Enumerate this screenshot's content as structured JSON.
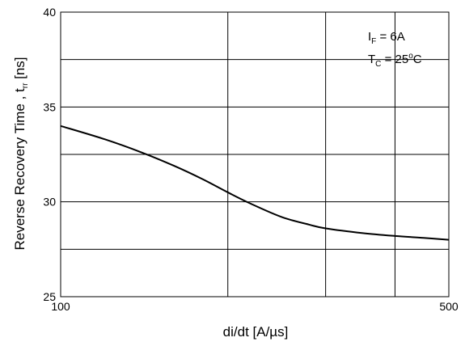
{
  "chart_data": {
    "type": "line",
    "xscale": "log",
    "xlabel": {
      "main": "di/dt [A/",
      "unit": "µs",
      "close": "]"
    },
    "ylabel": {
      "main": "Reverse Recovery Time , t",
      "sub": "rr",
      "unit": " [ns]"
    },
    "xlim": [
      100,
      500
    ],
    "ylim": [
      25,
      40
    ],
    "x_tick_labels": [
      "100",
      "500"
    ],
    "y_tick_labels": [
      "25",
      "30",
      "35",
      "40"
    ],
    "x_gridlines": [
      200,
      300,
      400
    ],
    "y_gridlines": [
      27.5,
      30,
      32.5,
      35,
      37.5
    ],
    "grid": true,
    "annotations": [
      {
        "main": "I",
        "sub": "F",
        "rest": " = 6A"
      },
      {
        "main": "T",
        "sub": "C",
        "rest": " = 25",
        "sup": "o",
        "tail": "C"
      }
    ],
    "series": [
      {
        "x": [
          100,
          120,
          140,
          160,
          180,
          200,
          220,
          250,
          280,
          300,
          350,
          400,
          450,
          500
        ],
        "y": [
          34.0,
          33.3,
          32.6,
          31.9,
          31.2,
          30.5,
          29.9,
          29.2,
          28.8,
          28.6,
          28.35,
          28.2,
          28.1,
          28.0
        ]
      }
    ]
  }
}
